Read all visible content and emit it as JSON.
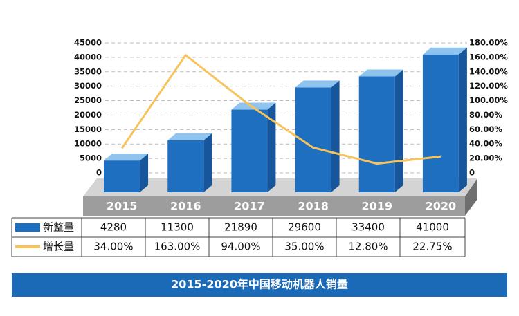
{
  "chart_data": {
    "type": "bar",
    "title": "2015-2020年中国移动机器人销量",
    "categories": [
      "2015",
      "2016",
      "2017",
      "2018",
      "2019",
      "2020"
    ],
    "series": [
      {
        "name": "新整量",
        "type": "bar",
        "color": "#1f6fc0",
        "values": [
          4280,
          11300,
          21890,
          29600,
          33400,
          41000
        ]
      },
      {
        "name": "增长量",
        "type": "line",
        "axis": "y2",
        "color": "#f7c35a",
        "values": [
          34,
          163,
          94,
          35,
          12.8,
          22.75
        ],
        "value_labels": [
          "34.00%",
          "163.00%",
          "94.00%",
          "35.00%",
          "12.80%",
          "22.75%"
        ]
      }
    ],
    "ylim": [
      0,
      45000
    ],
    "yticks": [
      0,
      5000,
      10000,
      15000,
      20000,
      25000,
      30000,
      35000,
      40000,
      45000
    ],
    "y2lim": [
      0,
      180
    ],
    "y2ticks": [
      0,
      {
        "value": 20,
        "label": "20.00%"
      },
      {
        "value": 40,
        "label": "40.00%"
      },
      {
        "value": 60,
        "label": "60.00%"
      },
      {
        "value": 80,
        "label": "80.00%"
      },
      {
        "value": 100,
        "label": "100.00%"
      },
      {
        "value": 120,
        "label": "120.00%"
      },
      {
        "value": 140,
        "label": "140.00%"
      },
      {
        "value": 160,
        "label": "160.00%"
      },
      {
        "value": 180,
        "label": "180.00%"
      }
    ],
    "grid": true
  }
}
